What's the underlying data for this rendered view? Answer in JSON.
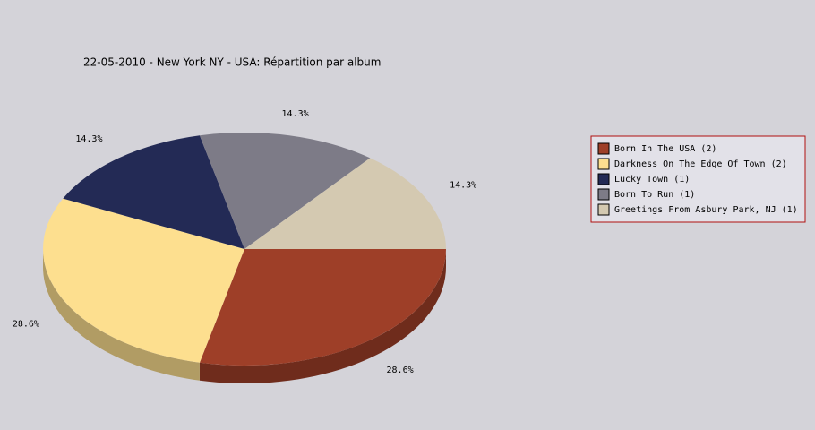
{
  "chart_data": {
    "type": "pie",
    "title": "22-05-2010 - New York NY - USA:  Répartition par album",
    "categories": [
      "Born In The USA (2)",
      "Darkness On The Edge Of Town (2)",
      "Lucky Town (1)",
      "Born To Run (1)",
      "Greetings From Asbury Park, NJ (1)"
    ],
    "values": [
      28.6,
      28.6,
      14.3,
      14.3,
      14.3
    ],
    "value_labels": [
      "28.6%",
      "28.6%",
      "14.3%",
      "14.3%",
      "14.3%"
    ],
    "colors": [
      "#9e3f28",
      "#fddf8f",
      "#232a55",
      "#7d7b87",
      "#d4c9b1"
    ],
    "legend": "right"
  }
}
